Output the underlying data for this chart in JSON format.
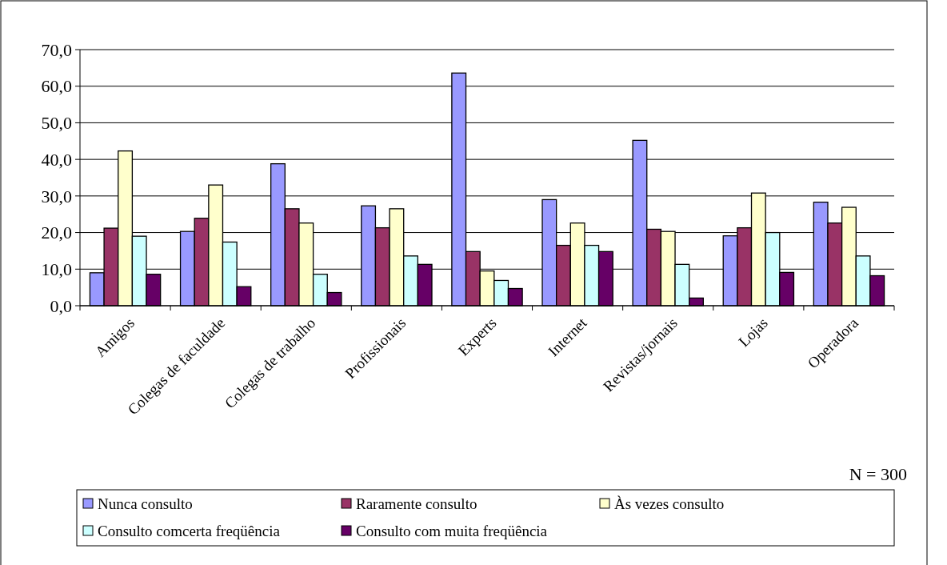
{
  "chart_data": {
    "type": "bar",
    "categories": [
      "Amigos",
      "Colegas de faculdade",
      "Colegas de trabalho",
      "Profissionais",
      "Experts",
      "Internet",
      "Revistas/jornais",
      "Lojas",
      "Operadora"
    ],
    "series": [
      {
        "name": "Nunca consulto",
        "color": "#9999ff",
        "values": [
          9.0,
          20.3,
          38.8,
          27.3,
          63.6,
          29.0,
          45.2,
          19.1,
          28.3
        ]
      },
      {
        "name": "Raramente consulto",
        "color": "#993366",
        "values": [
          21.2,
          23.9,
          26.5,
          21.3,
          14.8,
          16.5,
          20.9,
          21.3,
          22.6
        ]
      },
      {
        "name": "Às vezes consulto",
        "color": "#ffffcc",
        "values": [
          42.3,
          33.0,
          22.6,
          26.5,
          9.5,
          22.6,
          20.3,
          30.8,
          26.9
        ]
      },
      {
        "name": "Consulto comcerta freqüência",
        "color": "#ccffff",
        "values": [
          19.0,
          17.4,
          8.6,
          13.6,
          6.9,
          16.5,
          11.3,
          20.0,
          13.6
        ]
      },
      {
        "name": "Consulto com muita freqüência",
        "color": "#660066",
        "values": [
          8.6,
          5.2,
          3.6,
          11.3,
          4.7,
          14.8,
          2.1,
          9.1,
          8.2
        ]
      }
    ],
    "ylim": [
      0,
      70
    ],
    "yticks": [
      {
        "value": 0,
        "label": "0,0"
      },
      {
        "value": 10,
        "label": "10,0"
      },
      {
        "value": 20,
        "label": "20,0"
      },
      {
        "value": 30,
        "label": "30,0"
      },
      {
        "value": 40,
        "label": "40,0"
      },
      {
        "value": 50,
        "label": "50,0"
      },
      {
        "value": 60,
        "label": "60,0"
      },
      {
        "value": 70,
        "label": "70,0"
      }
    ],
    "grid": "y",
    "legend": "bottom",
    "annotations": [
      "N = 300"
    ]
  }
}
